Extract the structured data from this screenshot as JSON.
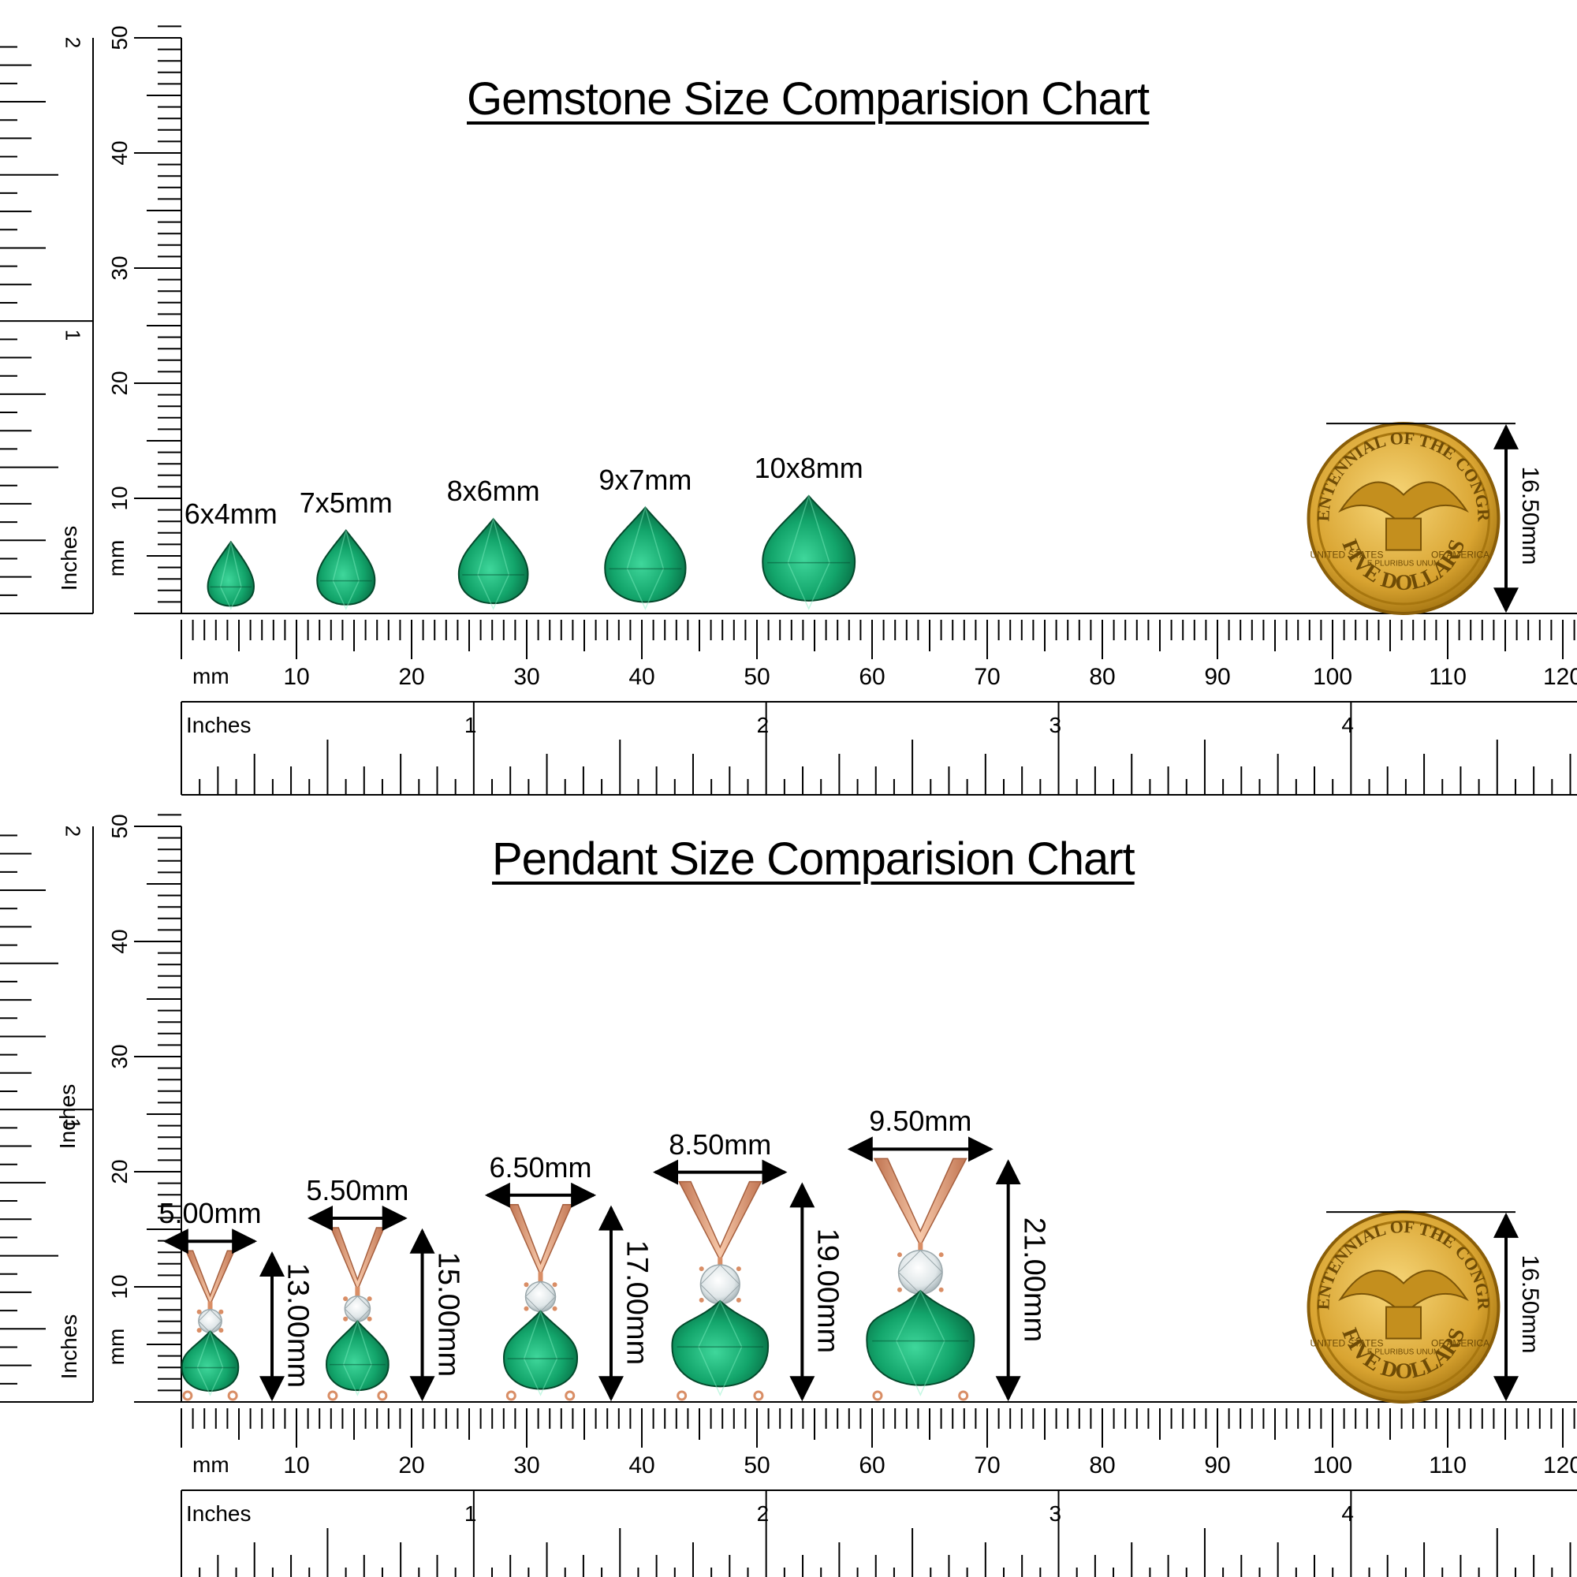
{
  "colors": {
    "gem_light": "#2fbf86",
    "gem_dark": "#0a7a4d",
    "gold_light": "#f2c55a",
    "gold_dark": "#b68411",
    "rose_gold": "#e7a27a",
    "rose_gold_dark": "#c17552"
  },
  "rulers": {
    "mm_label": "mm",
    "inches_label": "Inches",
    "mm_ticks_h": [
      "10",
      "20",
      "30",
      "40",
      "50",
      "60",
      "70",
      "80",
      "90",
      "100",
      "110",
      "120"
    ],
    "inch_ticks_h": [
      "1",
      "2",
      "3",
      "4"
    ],
    "mm_ticks_v": [
      "10",
      "20",
      "30",
      "40",
      "50"
    ],
    "inch_ticks_v": [
      "1",
      "2"
    ]
  },
  "gemstone_chart": {
    "title": "Gemstone Size Comparision Chart",
    "gems": [
      {
        "label": "6x4mm",
        "length_mm": 6,
        "width_mm": 4
      },
      {
        "label": "7x5mm",
        "length_mm": 7,
        "width_mm": 5
      },
      {
        "label": "8x6mm",
        "length_mm": 8,
        "width_mm": 6
      },
      {
        "label": "9x7mm",
        "length_mm": 9,
        "width_mm": 7
      },
      {
        "label": "10x8mm",
        "length_mm": 10,
        "width_mm": 8
      }
    ],
    "coin_label": "16.50mm",
    "coin_diameter_mm": 16.5
  },
  "pendant_chart": {
    "title": "Pendant Size Comparision Chart",
    "pendants": [
      {
        "width_label": "5.00mm",
        "height_label": "13.00mm",
        "width_mm": 5.0,
        "height_mm": 13.0
      },
      {
        "width_label": "5.50mm",
        "height_label": "15.00mm",
        "width_mm": 5.5,
        "height_mm": 15.0
      },
      {
        "width_label": "6.50mm",
        "height_label": "17.00mm",
        "width_mm": 6.5,
        "height_mm": 17.0
      },
      {
        "width_label": "8.50mm",
        "height_label": "19.00mm",
        "width_mm": 8.5,
        "height_mm": 19.0
      },
      {
        "width_label": "9.50mm",
        "height_label": "21.00mm",
        "width_mm": 9.5,
        "height_mm": 21.0
      }
    ],
    "coin_label": "16.50mm",
    "coin_diameter_mm": 16.5
  },
  "coin": {
    "top_text": "BICENTENNIAL OF THE CONGRESS",
    "left_text": "UNITED STATES",
    "right_text": "OF AMERICA",
    "motto": "E PLURIBUS UNUM",
    "bottom_text": "FIVE DOLLARS"
  }
}
